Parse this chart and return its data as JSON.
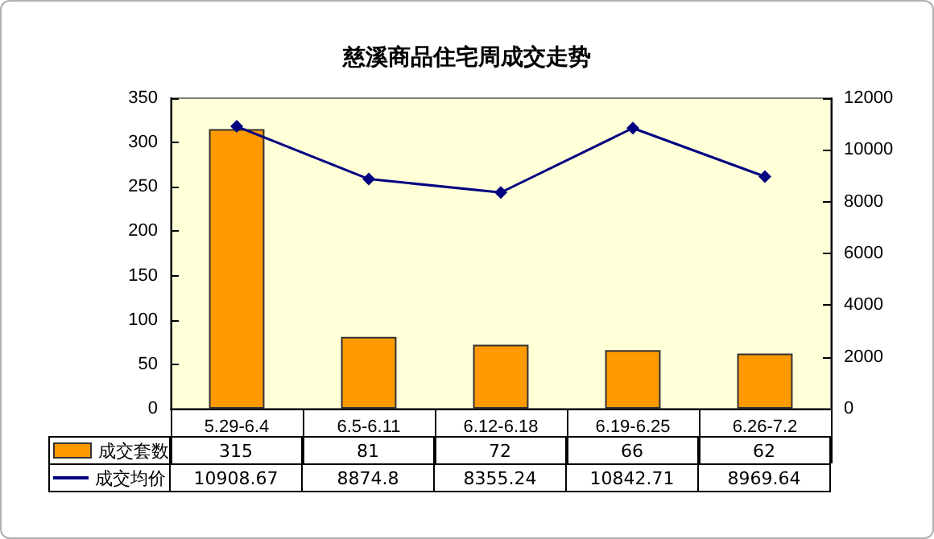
{
  "chart_data": {
    "type": "bar",
    "title": "慈溪商品住宅周成交走势",
    "categories": [
      "5.29-6.4",
      "6.5-6.11",
      "6.12-6.18",
      "6.19-6.25",
      "6.26-7.2"
    ],
    "series": [
      {
        "name": "成交套数",
        "color": "#ff9900",
        "values": [
          315,
          81,
          72,
          66,
          62
        ]
      },
      {
        "name": "成交均价",
        "type": "line",
        "axis": "y2",
        "color": "#000080",
        "marker": "diamond",
        "values": [
          10908.67,
          8874.8,
          8355.24,
          10842.71,
          8969.64
        ]
      }
    ],
    "ylim": [
      0,
      350
    ],
    "yticks": [
      0,
      50,
      100,
      150,
      200,
      250,
      300,
      350
    ],
    "y2lim": [
      0,
      12000
    ],
    "y2ticks": [
      0,
      2000,
      4000,
      6000,
      8000,
      10000,
      12000
    ],
    "data_labels": true,
    "legend": "bottom"
  }
}
